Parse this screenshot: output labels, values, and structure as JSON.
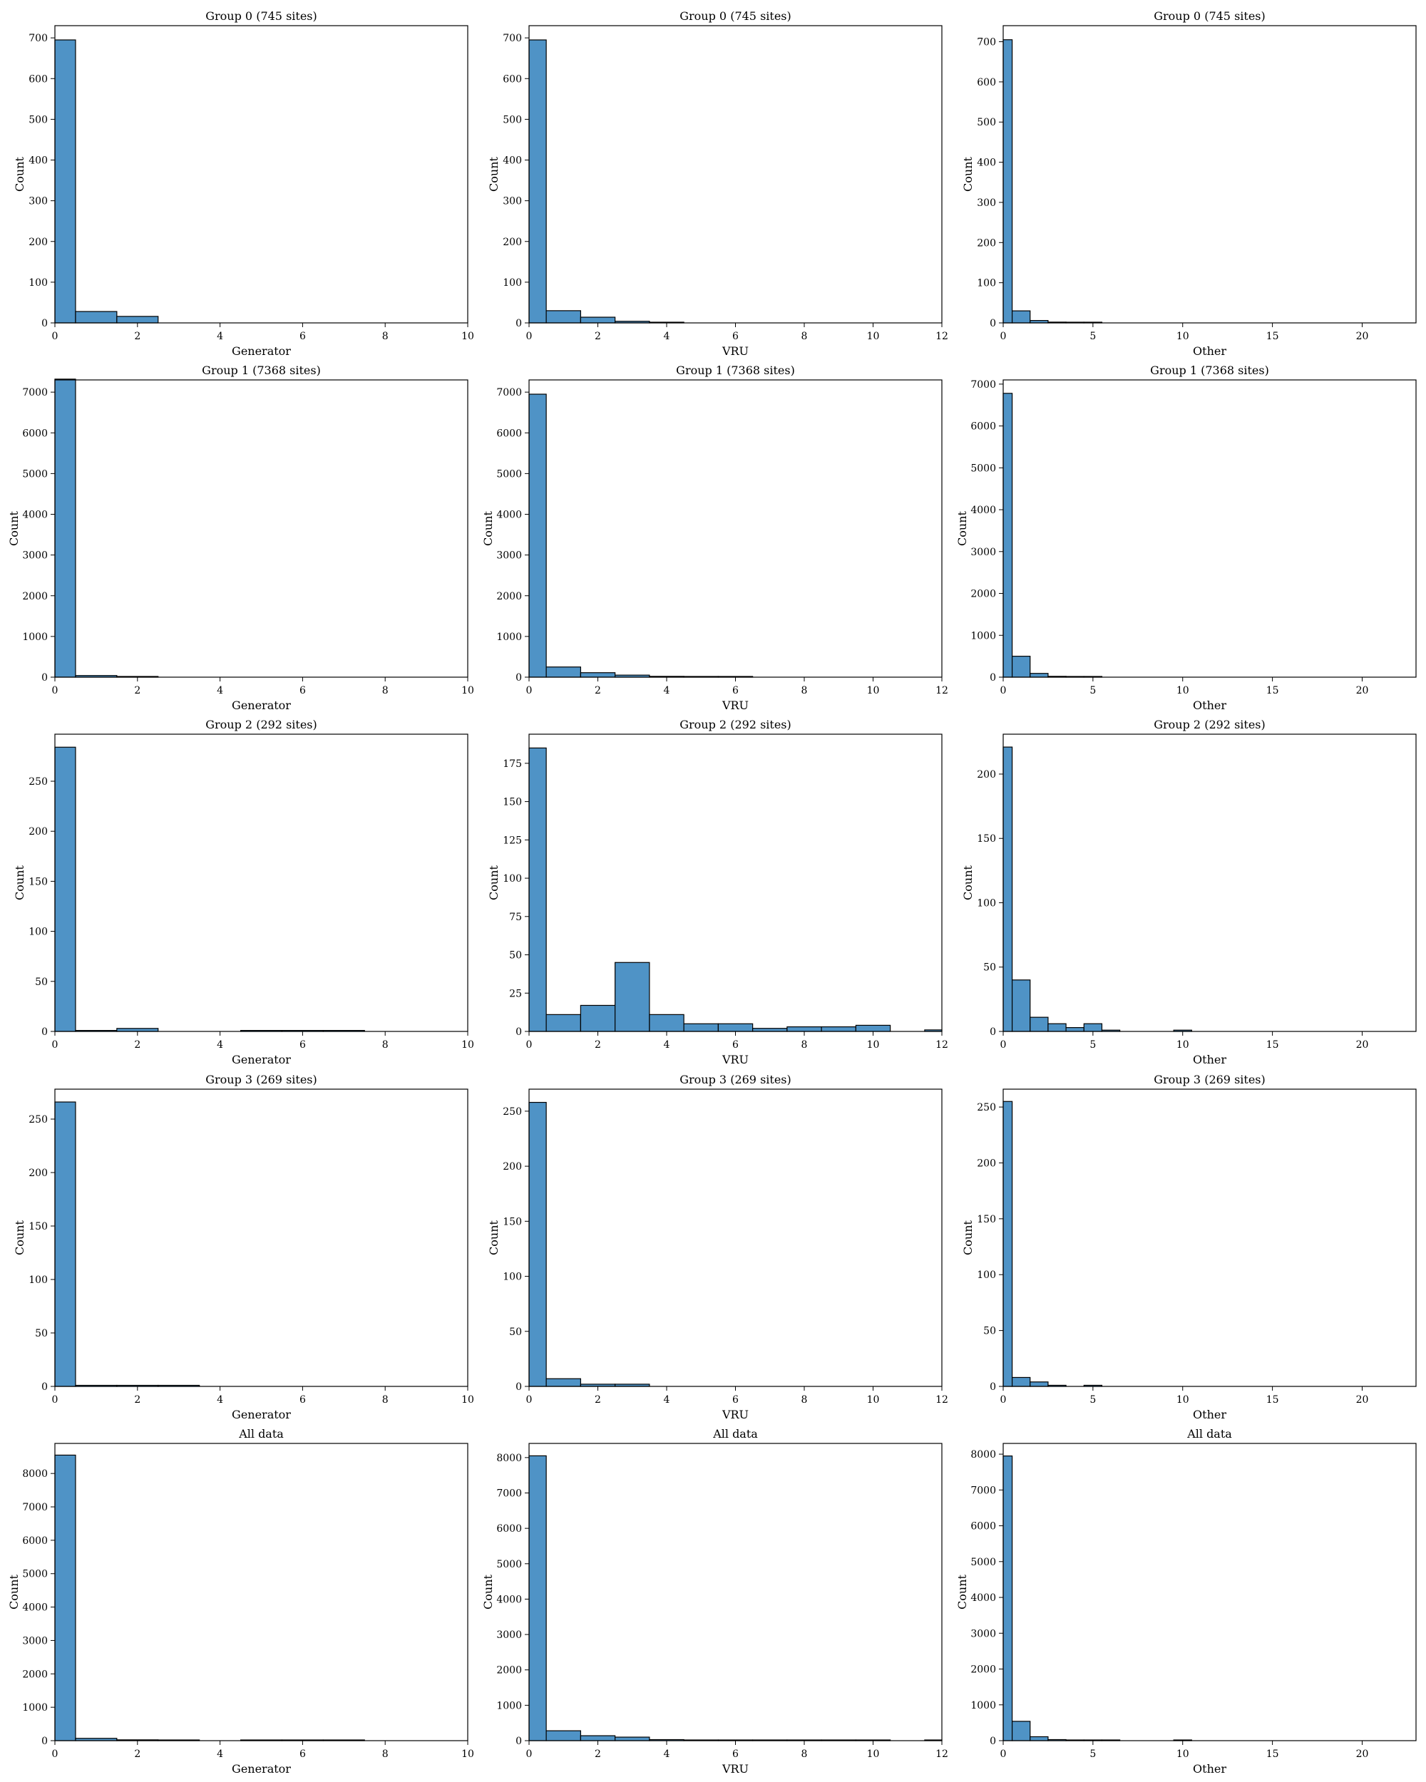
{
  "chart_data": [
    {
      "type": "bar",
      "title": "Group 0 (745 sites)",
      "xlabel": "Generator",
      "ylabel": "Count",
      "xlim": [
        0,
        10
      ],
      "ylim": [
        0,
        730
      ],
      "binwidth": 1,
      "bin_start": -0.5,
      "values": [
        695,
        28,
        16,
        0,
        0,
        0,
        0,
        0,
        0,
        0,
        0
      ],
      "xticks": [
        0,
        2,
        4,
        6,
        8,
        10
      ],
      "yticks": [
        0,
        100,
        200,
        300,
        400,
        500,
        600,
        700
      ]
    },
    {
      "type": "bar",
      "title": "Group 0 (745 sites)",
      "xlabel": "VRU",
      "ylabel": "Count",
      "xlim": [
        0,
        12
      ],
      "ylim": [
        0,
        730
      ],
      "binwidth": 1,
      "bin_start": -0.5,
      "values": [
        695,
        30,
        14,
        4,
        1,
        0,
        0,
        0,
        0,
        0,
        0,
        0,
        0
      ],
      "xticks": [
        0,
        2,
        4,
        6,
        8,
        10,
        12
      ],
      "yticks": [
        0,
        100,
        200,
        300,
        400,
        500,
        600,
        700
      ]
    },
    {
      "type": "bar",
      "title": "Group 0 (745 sites)",
      "xlabel": "Other",
      "ylabel": "Count",
      "xlim": [
        0,
        23
      ],
      "ylim": [
        0,
        740
      ],
      "binwidth": 1,
      "bin_start": -0.5,
      "values": [
        705,
        30,
        6,
        2,
        1,
        1,
        0,
        0,
        0,
        0,
        0,
        0,
        0,
        0,
        0,
        0,
        0,
        0,
        0,
        0,
        0,
        0,
        0
      ],
      "xticks": [
        0,
        5,
        10,
        15,
        20
      ],
      "yticks": [
        0,
        100,
        200,
        300,
        400,
        500,
        600,
        700
      ]
    },
    {
      "type": "bar",
      "title": "Group 1 (7368 sites)",
      "xlabel": "Generator",
      "ylabel": "Count",
      "xlim": [
        0,
        10
      ],
      "ylim": [
        0,
        7300
      ],
      "binwidth": 1,
      "bin_start": -0.5,
      "values": [
        7320,
        40,
        8,
        0,
        0,
        0,
        0,
        0,
        0,
        0,
        0
      ],
      "xticks": [
        0,
        2,
        4,
        6,
        8,
        10
      ],
      "yticks": [
        0,
        1000,
        2000,
        3000,
        4000,
        5000,
        6000,
        7000
      ]
    },
    {
      "type": "bar",
      "title": "Group 1 (7368 sites)",
      "xlabel": "VRU",
      "ylabel": "Count",
      "xlim": [
        0,
        12
      ],
      "ylim": [
        0,
        7300
      ],
      "binwidth": 1,
      "bin_start": -0.5,
      "values": [
        6950,
        250,
        110,
        50,
        20,
        5,
        2,
        0,
        0,
        0,
        0,
        0,
        0
      ],
      "xticks": [
        0,
        2,
        4,
        6,
        8,
        10,
        12
      ],
      "yticks": [
        0,
        1000,
        2000,
        3000,
        4000,
        5000,
        6000,
        7000
      ]
    },
    {
      "type": "bar",
      "title": "Group 1 (7368 sites)",
      "xlabel": "Other",
      "ylabel": "Count",
      "xlim": [
        0,
        23
      ],
      "ylim": [
        0,
        7100
      ],
      "binwidth": 1,
      "bin_start": -0.5,
      "values": [
        6780,
        500,
        90,
        20,
        5,
        2,
        0,
        0,
        0,
        0,
        0,
        0,
        0,
        0,
        0,
        0,
        0,
        0,
        0,
        0,
        0,
        0,
        0
      ],
      "xticks": [
        0,
        5,
        10,
        15,
        20
      ],
      "yticks": [
        0,
        1000,
        2000,
        3000,
        4000,
        5000,
        6000,
        7000
      ]
    },
    {
      "type": "bar",
      "title": "Group 2 (292 sites)",
      "xlabel": "Generator",
      "ylabel": "Count",
      "xlim": [
        0,
        10
      ],
      "ylim": [
        0,
        297
      ],
      "binwidth": 1,
      "bin_start": -0.5,
      "values": [
        284,
        1,
        3,
        0,
        0,
        1,
        1,
        1,
        0,
        0,
        0
      ],
      "xticks": [
        0,
        2,
        4,
        6,
        8,
        10
      ],
      "yticks": [
        0,
        50,
        100,
        150,
        200,
        250
      ]
    },
    {
      "type": "bar",
      "title": "Group 2 (292 sites)",
      "xlabel": "VRU",
      "ylabel": "Count",
      "xlim": [
        0,
        12
      ],
      "ylim": [
        0,
        194
      ],
      "binwidth": 1,
      "bin_start": -0.5,
      "values": [
        185,
        11,
        17,
        45,
        11,
        5,
        5,
        2,
        3,
        3,
        4,
        0,
        1
      ],
      "xticks": [
        0,
        2,
        4,
        6,
        8,
        10,
        12
      ],
      "yticks": [
        0,
        25,
        50,
        75,
        100,
        125,
        150,
        175
      ]
    },
    {
      "type": "bar",
      "title": "Group 2 (292 sites)",
      "xlabel": "Other",
      "ylabel": "Count",
      "xlim": [
        0,
        23
      ],
      "ylim": [
        0,
        231
      ],
      "binwidth": 1,
      "bin_start": -0.5,
      "values": [
        221,
        40,
        11,
        6,
        3,
        6,
        1,
        0,
        0,
        0,
        1,
        0,
        0,
        0,
        0,
        0,
        0,
        0,
        0,
        0,
        0,
        0,
        0
      ],
      "xticks": [
        0,
        5,
        10,
        15,
        20
      ],
      "yticks": [
        0,
        50,
        100,
        150,
        200
      ]
    },
    {
      "type": "bar",
      "title": "Group 3 (269 sites)",
      "xlabel": "Generator",
      "ylabel": "Count",
      "xlim": [
        0,
        10
      ],
      "ylim": [
        0,
        278
      ],
      "binwidth": 1,
      "bin_start": -0.5,
      "values": [
        266,
        1,
        1,
        1,
        0,
        0,
        0,
        0,
        0,
        0,
        0
      ],
      "xticks": [
        0,
        2,
        4,
        6,
        8,
        10
      ],
      "yticks": [
        0,
        50,
        100,
        150,
        200,
        250
      ]
    },
    {
      "type": "bar",
      "title": "Group 3 (269 sites)",
      "xlabel": "VRU",
      "ylabel": "Count",
      "xlim": [
        0,
        12
      ],
      "ylim": [
        0,
        270
      ],
      "binwidth": 1,
      "bin_start": -0.5,
      "values": [
        258,
        7,
        2,
        2,
        0,
        0,
        0,
        0,
        0,
        0,
        0,
        0,
        0
      ],
      "xticks": [
        0,
        2,
        4,
        6,
        8,
        10,
        12
      ],
      "yticks": [
        0,
        50,
        100,
        150,
        200,
        250
      ]
    },
    {
      "type": "bar",
      "title": "Group 3 (269 sites)",
      "xlabel": "Other",
      "ylabel": "Count",
      "xlim": [
        0,
        23
      ],
      "ylim": [
        0,
        266
      ],
      "binwidth": 1,
      "bin_start": -0.5,
      "values": [
        255,
        8,
        4,
        1,
        0,
        1,
        0,
        0,
        0,
        0,
        0,
        0,
        0,
        0,
        0,
        0,
        0,
        0,
        0,
        0,
        0,
        0,
        0
      ],
      "xticks": [
        0,
        5,
        10,
        15,
        20
      ],
      "yticks": [
        0,
        50,
        100,
        150,
        200,
        250
      ]
    },
    {
      "type": "bar",
      "title": "All data",
      "xlabel": "Generator",
      "ylabel": "Count",
      "xlim": [
        0,
        10
      ],
      "ylim": [
        0,
        8900
      ],
      "binwidth": 1,
      "bin_start": -0.5,
      "values": [
        8550,
        70,
        25,
        5,
        0,
        1,
        1,
        1,
        0,
        0,
        0
      ],
      "xticks": [
        0,
        2,
        4,
        6,
        8,
        10
      ],
      "yticks": [
        0,
        1000,
        2000,
        3000,
        4000,
        5000,
        6000,
        7000,
        8000
      ]
    },
    {
      "type": "bar",
      "title": "All data",
      "xlabel": "VRU",
      "ylabel": "Count",
      "xlim": [
        0,
        12
      ],
      "ylim": [
        0,
        8400
      ],
      "binwidth": 1,
      "bin_start": -0.5,
      "values": [
        8050,
        280,
        140,
        100,
        30,
        10,
        5,
        2,
        3,
        3,
        4,
        0,
        1
      ],
      "xticks": [
        0,
        2,
        4,
        6,
        8,
        10,
        12
      ],
      "yticks": [
        0,
        1000,
        2000,
        3000,
        4000,
        5000,
        6000,
        7000,
        8000
      ]
    },
    {
      "type": "bar",
      "title": "All data",
      "xlabel": "Other",
      "ylabel": "Count",
      "xlim": [
        0,
        23
      ],
      "ylim": [
        0,
        8300
      ],
      "binwidth": 1,
      "bin_start": -0.5,
      "values": [
        7950,
        540,
        110,
        30,
        8,
        7,
        1,
        0,
        0,
        0,
        1,
        0,
        0,
        0,
        0,
        0,
        0,
        0,
        0,
        0,
        0,
        0,
        0
      ],
      "xticks": [
        0,
        5,
        10,
        15,
        20
      ],
      "yticks": [
        0,
        1000,
        2000,
        3000,
        4000,
        5000,
        6000,
        7000,
        8000
      ]
    }
  ]
}
